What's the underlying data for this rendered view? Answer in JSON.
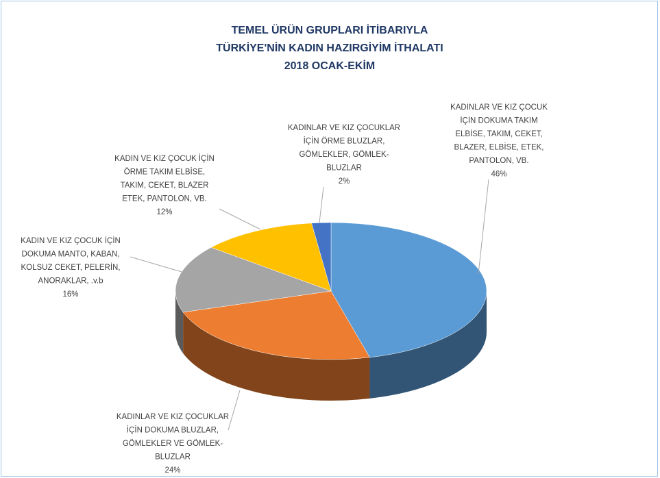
{
  "chart_data": {
    "type": "pie3d",
    "title": [
      "TEMEL ÜRÜN GRUPLARI İTİBARIYLA",
      "TÜRKİYE'NİN KADIN HAZIRGİYİM İTHALATI",
      "2018 OCAK-EKİM"
    ],
    "categories": [
      [
        "KADINLAR VE KIZ ÇOCUK",
        "İÇİN DOKUMA TAKIM",
        "ELBİSE, TAKIM, CEKET,",
        "BLAZER, ELBİSE, ETEK,",
        "PANTOLON, VB."
      ],
      [
        "KADINLAR VE KIZ ÇOCUKLAR",
        "İÇİN DOKUMA BLUZLAR,",
        "GÖMLEKLER  VE GÖMLEK-",
        "BLUZLAR"
      ],
      [
        "KADIN VE KIZ ÇOCUK İÇİN",
        "DOKUMA MANTO, KABAN,",
        "KOLSUZ CEKET, PELERİN,",
        "ANORAKLAR, .v.b"
      ],
      [
        "KADIN VE KIZ ÇOCUK İÇİN",
        "ÖRME TAKIM ELBİSE,",
        "TAKIM, CEKET, BLAZER",
        "ETEK, PANTOLON, VB."
      ],
      [
        "KADINLAR VE KIZ ÇOCUKLAR",
        "İÇİN ÖRME BLUZLAR,",
        "GÖMLEKLER,  GÖMLEK-",
        "BLUZLAR"
      ]
    ],
    "values": [
      46,
      24,
      16,
      12,
      2
    ],
    "value_labels": [
      "46%",
      "24%",
      "16%",
      "12%",
      "2%"
    ],
    "colors": [
      "#5b9bd5",
      "#ed7d31",
      "#a5a5a5",
      "#ffc000",
      "#4472c4"
    ]
  }
}
